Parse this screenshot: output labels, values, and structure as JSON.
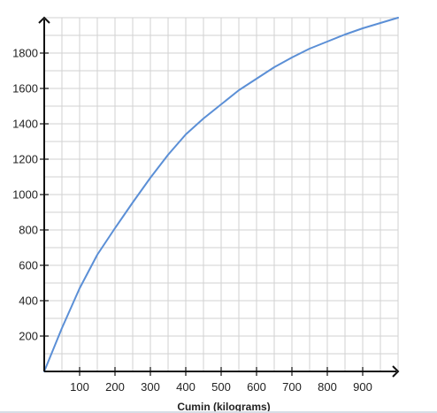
{
  "chart_data": {
    "type": "line",
    "title": "",
    "xlabel": "Cumin (kilograms)",
    "ylabel": "",
    "xlim": [
      0,
      1000
    ],
    "ylim": [
      0,
      2000
    ],
    "x_ticks": [
      100,
      200,
      300,
      400,
      500,
      600,
      700,
      800,
      900
    ],
    "y_ticks": [
      200,
      400,
      600,
      800,
      1000,
      1200,
      1400,
      1600,
      1800
    ],
    "x_tick_labels": [
      "100",
      "200",
      "300",
      "400",
      "500",
      "600",
      "700",
      "800",
      "900"
    ],
    "y_tick_labels": [
      "200",
      "400",
      "600",
      "800",
      "1000",
      "1200",
      "1400",
      "1600",
      "1800"
    ],
    "grid": true,
    "grid_minor_step_x": 50,
    "grid_minor_step_y": 100,
    "series": [
      {
        "color": "#5b8fd6",
        "x": [
          0,
          50,
          100,
          150,
          200,
          250,
          300,
          350,
          400,
          450,
          500,
          550,
          600,
          650,
          700,
          750,
          800,
          850,
          900,
          950,
          1000
        ],
        "y": [
          0,
          245,
          470,
          660,
          810,
          955,
          1095,
          1225,
          1340,
          1430,
          1510,
          1590,
          1655,
          1720,
          1775,
          1825,
          1865,
          1905,
          1940,
          1970,
          2000
        ]
      }
    ]
  },
  "colors": {
    "axis": "#111111",
    "grid": "#d2d2d2",
    "line": "#5b8fd6"
  }
}
